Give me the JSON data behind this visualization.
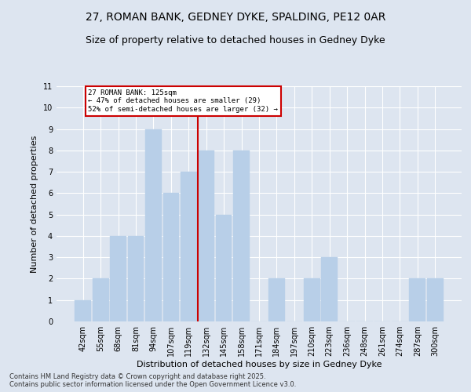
{
  "title1": "27, ROMAN BANK, GEDNEY DYKE, SPALDING, PE12 0AR",
  "title2": "Size of property relative to detached houses in Gedney Dyke",
  "xlabel": "Distribution of detached houses by size in Gedney Dyke",
  "ylabel": "Number of detached properties",
  "categories": [
    "42sqm",
    "55sqm",
    "68sqm",
    "81sqm",
    "94sqm",
    "107sqm",
    "119sqm",
    "132sqm",
    "145sqm",
    "158sqm",
    "171sqm",
    "184sqm",
    "197sqm",
    "210sqm",
    "223sqm",
    "236sqm",
    "248sqm",
    "261sqm",
    "274sqm",
    "287sqm",
    "300sqm"
  ],
  "values": [
    1,
    2,
    4,
    4,
    9,
    6,
    7,
    8,
    5,
    8,
    0,
    2,
    0,
    2,
    3,
    0,
    0,
    0,
    0,
    2,
    2
  ],
  "bar_color": "#b8cfe8",
  "bar_edge_color": "#b8cfe8",
  "vline_color": "#cc0000",
  "annotation_text": "27 ROMAN BANK: 125sqm\n← 47% of detached houses are smaller (29)\n52% of semi-detached houses are larger (32) →",
  "annotation_box_edgecolor": "#cc0000",
  "ylim": [
    0,
    11
  ],
  "yticks": [
    0,
    1,
    2,
    3,
    4,
    5,
    6,
    7,
    8,
    9,
    10,
    11
  ],
  "bg_color": "#dde5f0",
  "plot_bg_color": "#dde5f0",
  "footer": "Contains HM Land Registry data © Crown copyright and database right 2025.\nContains public sector information licensed under the Open Government Licence v3.0.",
  "title1_fontsize": 10,
  "title2_fontsize": 9,
  "axis_label_fontsize": 8,
  "tick_fontsize": 7,
  "footer_fontsize": 6
}
